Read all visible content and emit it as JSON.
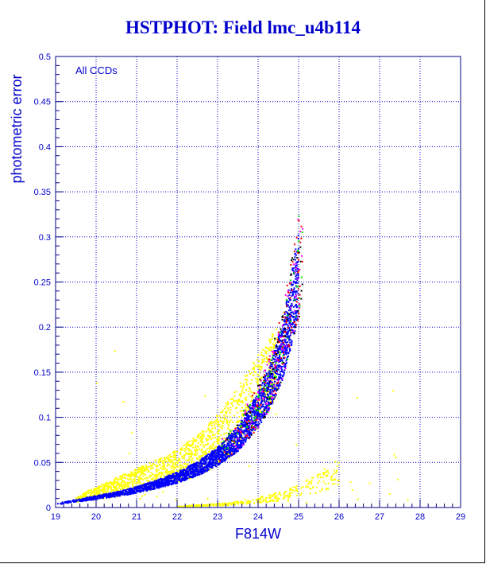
{
  "chart_data": {
    "type": "scatter",
    "title": "HSTPHOT: Field lmc_u4b114",
    "xlabel": "F814W",
    "ylabel": "photometric error",
    "annotation": "All CCDs",
    "xlim": [
      19,
      29
    ],
    "ylim": [
      0,
      0.5
    ],
    "xticks": [
      19,
      20,
      21,
      22,
      23,
      24,
      25,
      26,
      27,
      28,
      29
    ],
    "yticks": [
      0,
      0.05,
      0.1,
      0.15,
      0.2,
      0.25,
      0.3,
      0.35,
      0.4,
      0.45,
      0.5
    ],
    "grid": true,
    "colors": {
      "axis": "#000080",
      "grid": "#0000cc",
      "text": "#0000cc",
      "main_locus": "#0000ff",
      "scatter_upper": "#ffff00",
      "faint_branch": "#ffff00",
      "accents": [
        "#00dd00",
        "#ff0000",
        "#000000",
        "#ff00ff"
      ]
    },
    "series": [
      {
        "color": "#0000ff",
        "x": [
          19.0,
          19.5,
          20.0,
          20.5,
          21.0,
          21.5,
          22.0,
          22.5,
          23.0,
          23.5,
          24.0,
          24.3,
          24.6,
          24.8,
          25.0
        ],
        "y": [
          0.003,
          0.006,
          0.009,
          0.012,
          0.016,
          0.021,
          0.027,
          0.035,
          0.046,
          0.062,
          0.088,
          0.11,
          0.14,
          0.175,
          0.21
        ]
      },
      {
        "color": "#ffff00",
        "x": [
          19.5,
          20.0,
          20.5,
          21.0,
          21.5,
          22.0,
          22.5,
          23.0,
          23.5,
          24.0,
          24.5
        ],
        "y": [
          0.012,
          0.022,
          0.032,
          0.042,
          0.052,
          0.062,
          0.078,
          0.1,
          0.13,
          0.165,
          0.2
        ]
      },
      {
        "color": "#ffff00",
        "x": [
          22.0,
          22.5,
          23.0,
          23.5,
          24.0,
          24.5,
          25.0,
          25.5,
          26.0
        ],
        "y": [
          0.001,
          0.002,
          0.003,
          0.005,
          0.008,
          0.012,
          0.018,
          0.027,
          0.04
        ]
      }
    ]
  }
}
